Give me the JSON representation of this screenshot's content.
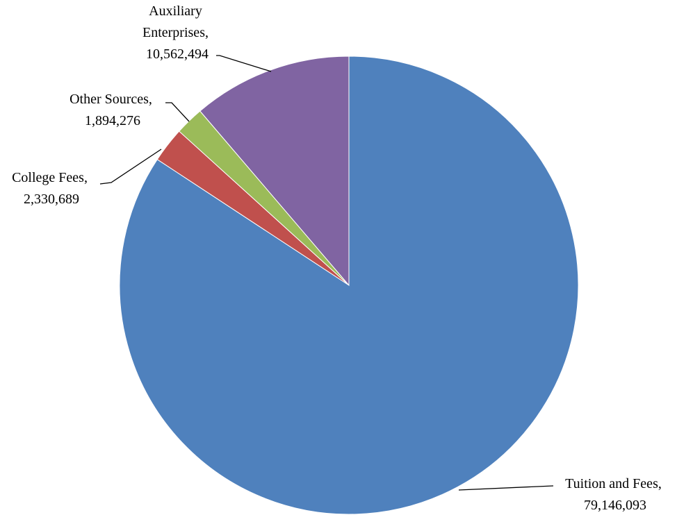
{
  "chart_data": {
    "type": "pie",
    "title": "",
    "slices": [
      {
        "label": "Tuition and Fees",
        "value": 79146093,
        "value_text": "79,146,093",
        "color": "#4F81BD"
      },
      {
        "label": "College Fees",
        "value": 2330689,
        "value_text": "2,330,689",
        "color": "#C0504D"
      },
      {
        "label": "Other Sources",
        "value": 1894276,
        "value_text": "1,894,276",
        "color": "#9BBB59"
      },
      {
        "label": "Auxiliary Enterprises",
        "value": 10562494,
        "value_text": "10,562,494",
        "color": "#8064A2"
      }
    ],
    "start_angle": "12 o'clock",
    "direction": "clockwise",
    "legend": "none",
    "data_labels": "category name and value, with leader lines"
  }
}
